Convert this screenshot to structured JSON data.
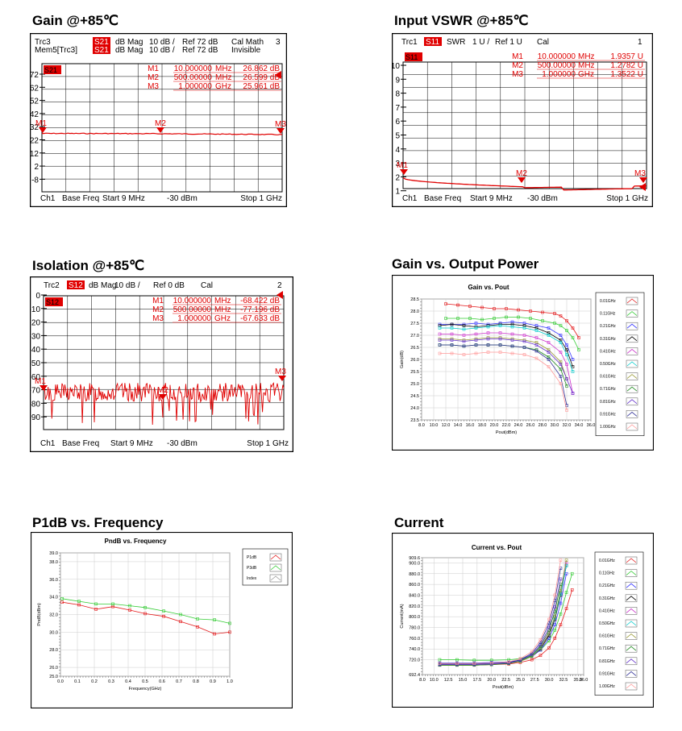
{
  "sections": {
    "gain_85": "Gain @+85℃",
    "vswr_85": "Input VSWR @+85℃",
    "isolation_85": "Isolation @+85℃",
    "gain_vs_pout": "Gain vs. Output Power",
    "p1db_vs_freq": "P1dB vs. Frequency",
    "current": "Current"
  },
  "vna_gain": {
    "header": [
      [
        "Trc3",
        "S21",
        "dB Mag",
        "10 dB /",
        "Ref 72 dB",
        "Cal Math",
        "3"
      ],
      [
        "Mem5[Trc3]",
        "S21",
        "dB Mag",
        "10 dB /",
        "Ref 72 dB",
        "Invisible",
        ""
      ]
    ],
    "trace_badge": "S21",
    "markers": [
      {
        "name": "M1",
        "freq": "10.000000",
        "unit": "MHz",
        "value": "26.862 dB"
      },
      {
        "name": "M2",
        "freq": "500.00000",
        "unit": "MHz",
        "value": "26.599 dB"
      },
      {
        "name": "M3",
        "freq": "1.000000",
        "unit": "GHz",
        "value": "25.961 dB"
      }
    ],
    "marker_tags": [
      "M1",
      "M2",
      "M3"
    ],
    "ticks": [
      "72",
      "62",
      "52",
      "42",
      "32",
      "22",
      "12",
      "2",
      "-8"
    ],
    "footer": {
      "ch": "Ch1",
      "base": "Base Freq",
      "start": "Start  9 MHz",
      "power": "-30 dBm",
      "stop": "Stop  1 GHz"
    },
    "chart_data": {
      "type": "line",
      "y_ref": 72,
      "scale_db_per_div": 10,
      "x_range_ghz": [
        0.009,
        1.0
      ],
      "x": [
        0.009,
        0.5,
        1.0
      ],
      "y": [
        26.862,
        26.599,
        25.961
      ]
    }
  },
  "vna_vswr": {
    "header": [
      [
        "Trc1",
        "S11",
        "SWR",
        "1 U /",
        "Ref 1 U",
        "Cal",
        "1"
      ]
    ],
    "trace_badge": "S11",
    "markers": [
      {
        "name": "M1",
        "freq": "10.000000",
        "unit": "MHz",
        "value": "1.9357 U"
      },
      {
        "name": "M2",
        "freq": "500.00000",
        "unit": "MHz",
        "value": "1.2782 U"
      },
      {
        "name": "M3",
        "freq": "1.000000",
        "unit": "GHz",
        "value": "1.3522 U"
      }
    ],
    "marker_tags": [
      "M1",
      "M2",
      "M3"
    ],
    "ticks": [
      "10",
      "9",
      "8",
      "7",
      "6",
      "5",
      "4",
      "3",
      "2",
      "1"
    ],
    "footer": {
      "ch": "Ch1",
      "base": "Base Freq",
      "start": "Start  9 MHz",
      "power": "-30 dBm",
      "stop": "Stop  1 GHz"
    },
    "chart_data": {
      "type": "line",
      "x_range_ghz": [
        0.009,
        1.0
      ],
      "ylim": [
        1,
        10
      ],
      "x": [
        0.009,
        0.5,
        1.0
      ],
      "y": [
        1.9357,
        1.2782,
        1.3522
      ]
    }
  },
  "vna_iso": {
    "header": [
      [
        "Trc2",
        "S12",
        "dB Mag",
        "10 dB /",
        "Ref 0 dB",
        "Cal",
        "2"
      ]
    ],
    "trace_badge": "S12",
    "markers": [
      {
        "name": "M1",
        "freq": "10.000000",
        "unit": "MHz",
        "value": "-68.422 dB"
      },
      {
        "name": "M2",
        "freq": "500.00000",
        "unit": "MHz",
        "value": "-77.196 dB"
      },
      {
        "name": "M3",
        "freq": "1.000000",
        "unit": "GHz",
        "value": "-67.633 dB"
      }
    ],
    "marker_tags": [
      "M1",
      "M2",
      "M3"
    ],
    "ticks": [
      "0",
      "-10",
      "-20",
      "-30",
      "-40",
      "-50",
      "-60",
      "-70",
      "-80",
      "-90"
    ],
    "footer": {
      "ch": "Ch1",
      "base": "Base Freq",
      "start": "Start  9 MHz",
      "power": "-30 dBm",
      "stop": "Stop  1 GHz"
    },
    "chart_data": {
      "type": "line",
      "y_ref": 0,
      "scale_db_per_div": 10,
      "x_range_ghz": [
        0.009,
        1.0
      ],
      "x": [
        0.009,
        0.5,
        1.0
      ],
      "y": [
        -68.422,
        -77.196,
        -67.633
      ]
    }
  },
  "chart_gain_pout": {
    "title": "Gain vs. Pout",
    "xlabel": "Pout(dBm)",
    "ylabel": "Gain(dB)",
    "yticks": [
      "28.5",
      "28.0",
      "27.5",
      "27.0",
      "26.5",
      "26.0",
      "25.5",
      "25.0",
      "24.5",
      "24.0",
      "23.5"
    ],
    "xticks": [
      "8.0",
      "10.0",
      "12.0",
      "14.0",
      "16.0",
      "18.0",
      "20.0",
      "22.0",
      "24.0",
      "26.0",
      "28.0",
      "30.0",
      "32.0",
      "34.0",
      "36.0"
    ],
    "legend": [
      "0.01GHz",
      "0.11GHz",
      "0.21GHz",
      "0.31GHz",
      "0.41GHz",
      "0.50GHz",
      "0.61GHz",
      "0.71GHz",
      "0.81GHz",
      "0.91GHz",
      "1.00GHz"
    ],
    "colors": [
      "#e41a1c",
      "#33cc33",
      "#3333ff",
      "#000000",
      "#cc33cc",
      "#00cccc",
      "#999933",
      "#228b22",
      "#6633cc",
      "#333399",
      "#ff9999"
    ],
    "chart_data": {
      "type": "line",
      "xlim": [
        8,
        36
      ],
      "ylim": [
        23.5,
        28.5
      ],
      "series": [
        {
          "name": "0.01GHz",
          "x": [
            12,
            14,
            16,
            18,
            20,
            22,
            24,
            26,
            28,
            30,
            31,
            32,
            33,
            34
          ],
          "y": [
            28.3,
            28.25,
            28.2,
            28.15,
            28.1,
            28.1,
            28.05,
            28.0,
            27.95,
            27.9,
            27.8,
            27.6,
            27.3,
            26.9
          ]
        },
        {
          "name": "0.11GHz",
          "x": [
            12,
            14,
            16,
            18,
            20,
            22,
            24,
            26,
            28,
            30,
            31,
            32,
            33,
            34
          ],
          "y": [
            27.7,
            27.7,
            27.7,
            27.65,
            27.7,
            27.75,
            27.75,
            27.7,
            27.6,
            27.5,
            27.4,
            27.2,
            26.9,
            26.4
          ]
        },
        {
          "name": "0.21GHz",
          "x": [
            11,
            13,
            15,
            17,
            19,
            21,
            23,
            25,
            27,
            29,
            31,
            32,
            33
          ],
          "y": [
            27.45,
            27.45,
            27.45,
            27.5,
            27.45,
            27.5,
            27.55,
            27.5,
            27.4,
            27.3,
            27.0,
            26.6,
            26.0
          ]
        },
        {
          "name": "0.31GHz",
          "x": [
            11,
            13,
            15,
            17,
            19,
            21,
            23,
            25,
            27,
            29,
            31,
            32,
            33
          ],
          "y": [
            27.4,
            27.45,
            27.4,
            27.35,
            27.4,
            27.45,
            27.45,
            27.4,
            27.3,
            27.1,
            26.8,
            26.4,
            25.7
          ]
        },
        {
          "name": "0.41GHz",
          "x": [
            11,
            13,
            15,
            17,
            19,
            21,
            23,
            25,
            27,
            29,
            31,
            32,
            33
          ],
          "y": [
            27.05,
            27.05,
            27.0,
            27.05,
            27.1,
            27.1,
            27.05,
            27.0,
            26.9,
            26.7,
            26.3,
            25.8,
            24.6
          ]
        },
        {
          "name": "0.50GHz",
          "x": [
            11,
            13,
            15,
            17,
            19,
            21,
            23,
            25,
            27,
            29,
            31,
            32,
            33
          ],
          "y": [
            27.3,
            27.3,
            27.25,
            27.3,
            27.35,
            27.4,
            27.35,
            27.3,
            27.2,
            27.0,
            26.7,
            26.2,
            25.5
          ]
        },
        {
          "name": "0.61GHz",
          "x": [
            11,
            13,
            15,
            17,
            19,
            21,
            23,
            25,
            27,
            29,
            31,
            32
          ],
          "y": [
            26.85,
            26.85,
            26.8,
            26.85,
            26.9,
            26.9,
            26.85,
            26.8,
            26.7,
            26.4,
            25.9,
            25.2
          ]
        },
        {
          "name": "0.71GHz",
          "x": [
            11,
            13,
            15,
            17,
            19,
            21,
            23,
            25,
            27,
            29,
            31,
            32
          ],
          "y": [
            26.6,
            26.6,
            26.55,
            26.6,
            26.6,
            26.6,
            26.55,
            26.5,
            26.4,
            26.1,
            25.6,
            24.9
          ]
        },
        {
          "name": "0.81GHz",
          "x": [
            11,
            13,
            15,
            17,
            19,
            21,
            23,
            25,
            27,
            29,
            31,
            32,
            33
          ],
          "y": [
            26.8,
            26.8,
            26.75,
            26.8,
            26.85,
            26.85,
            26.8,
            26.75,
            26.6,
            26.3,
            25.8,
            25.2,
            24.6
          ]
        },
        {
          "name": "0.91GHz",
          "x": [
            11,
            13,
            15,
            17,
            19,
            21,
            23,
            25,
            27,
            29,
            31,
            32
          ],
          "y": [
            26.6,
            26.6,
            26.55,
            26.6,
            26.6,
            26.6,
            26.55,
            26.5,
            26.35,
            26.0,
            25.3,
            24.1
          ]
        },
        {
          "name": "1.00GHz",
          "x": [
            11,
            13,
            15,
            17,
            19,
            21,
            23,
            25,
            27,
            29,
            31,
            32
          ],
          "y": [
            26.25,
            26.25,
            26.2,
            26.25,
            26.3,
            26.3,
            26.25,
            26.2,
            26.05,
            25.7,
            25.0,
            23.9
          ]
        }
      ]
    }
  },
  "chart_p1db": {
    "title": "PndB vs. Frequency",
    "xlabel": "Frequency(GHz)",
    "ylabel": "PndB(dBm)",
    "yticks": [
      "39.0",
      "38.0",
      "36.0",
      "34.0",
      "32.0",
      "30.0",
      "28.0",
      "26.0",
      "25.0"
    ],
    "xticks": [
      "0.0",
      "0.1",
      "0.2",
      "0.3",
      "0.4",
      "0.5",
      "0.6",
      "0.7",
      "0.8",
      "0.9",
      "1.0"
    ],
    "legend": [
      "P1dB",
      "P3dB",
      "Index"
    ],
    "colors": [
      "#e41a1c",
      "#33cc33",
      "#999999"
    ],
    "chart_data": {
      "type": "line",
      "xlim": [
        0,
        1
      ],
      "ylim": [
        25,
        39
      ],
      "x": [
        0.01,
        0.11,
        0.21,
        0.31,
        0.41,
        0.5,
        0.61,
        0.71,
        0.81,
        0.91,
        1.0
      ],
      "series": [
        {
          "name": "P1dB",
          "values": [
            33.4,
            33.1,
            32.6,
            32.9,
            32.5,
            32.1,
            31.8,
            31.2,
            30.6,
            29.8,
            30.0
          ]
        },
        {
          "name": "P3dB",
          "values": [
            33.8,
            33.5,
            33.2,
            33.2,
            33.0,
            32.8,
            32.4,
            32.0,
            31.5,
            31.4,
            31.0
          ]
        }
      ]
    }
  },
  "chart_current": {
    "title": "Current vs. Pout",
    "xlabel": "Pout(dBm)",
    "ylabel": "Current(mA)",
    "yticks": [
      "909.6",
      "900.0",
      "880.0",
      "860.0",
      "840.0",
      "820.0",
      "800.0",
      "780.0",
      "760.0",
      "740.0",
      "720.0",
      "692.4"
    ],
    "xticks": [
      "8.0",
      "10.0",
      "12.5",
      "15.0",
      "17.5",
      "20.0",
      "22.5",
      "25.0",
      "27.5",
      "30.0",
      "32.5",
      "35.0",
      "36.0"
    ],
    "legend": [
      "0.01GHz",
      "0.11GHz",
      "0.21GHz",
      "0.31GHz",
      "0.41GHz",
      "0.50GHz",
      "0.61GHz",
      "0.71GHz",
      "0.81GHz",
      "0.91GHz",
      "1.00GHz"
    ],
    "colors": [
      "#e41a1c",
      "#33cc33",
      "#3333ff",
      "#000000",
      "#cc33cc",
      "#00cccc",
      "#999933",
      "#228b22",
      "#6633cc",
      "#333399",
      "#ff9999"
    ],
    "chart_data": {
      "type": "line",
      "xlim": [
        8,
        36
      ],
      "ylim": [
        692.4,
        909.6
      ],
      "series": [
        {
          "name": "0.01GHz",
          "x": [
            11,
            14,
            17,
            20,
            23,
            25,
            27,
            28.5,
            30,
            31,
            32,
            33,
            34
          ],
          "y": [
            710,
            710,
            710,
            711,
            712,
            715,
            720,
            728,
            742,
            760,
            785,
            815,
            850
          ]
        },
        {
          "name": "0.11GHz",
          "x": [
            11,
            14,
            17,
            20,
            23,
            25,
            27,
            28.5,
            30,
            31,
            32,
            33,
            34
          ],
          "y": [
            720,
            720,
            719,
            719,
            720,
            722,
            728,
            738,
            755,
            775,
            805,
            845,
            880
          ]
        },
        {
          "name": "0.21GHz",
          "x": [
            11,
            14,
            17,
            20,
            23,
            25,
            27,
            28.5,
            30,
            31,
            32,
            33
          ],
          "y": [
            714,
            714,
            714,
            715,
            716,
            719,
            726,
            738,
            760,
            785,
            825,
            880
          ]
        },
        {
          "name": "0.31GHz",
          "x": [
            11,
            14,
            17,
            20,
            23,
            25,
            27,
            28.5,
            30,
            31,
            32,
            33
          ],
          "y": [
            712,
            712,
            712,
            713,
            714,
            718,
            726,
            740,
            765,
            795,
            840,
            895
          ]
        },
        {
          "name": "0.41GHz",
          "x": [
            11,
            14,
            17,
            20,
            23,
            25,
            27,
            28.5,
            30,
            31,
            32,
            33
          ],
          "y": [
            712,
            712,
            712,
            713,
            715,
            719,
            728,
            743,
            770,
            800,
            845,
            900
          ]
        },
        {
          "name": "0.50GHz",
          "x": [
            11,
            14,
            17,
            20,
            23,
            25,
            27,
            28.5,
            30,
            31,
            32,
            33
          ],
          "y": [
            711,
            711,
            711,
            712,
            714,
            718,
            727,
            742,
            768,
            798,
            842,
            895
          ]
        },
        {
          "name": "0.61GHz",
          "x": [
            11,
            14,
            17,
            20,
            23,
            25,
            27,
            28.5,
            30,
            31,
            32,
            33
          ],
          "y": [
            710,
            710,
            710,
            711,
            713,
            717,
            726,
            741,
            768,
            800,
            848,
            905
          ]
        },
        {
          "name": "0.71GHz",
          "x": [
            11,
            14,
            17,
            20,
            23,
            25,
            27,
            28.5,
            30,
            31,
            32
          ],
          "y": [
            710,
            710,
            710,
            711,
            713,
            718,
            728,
            745,
            775,
            810,
            860
          ]
        },
        {
          "name": "0.81GHz",
          "x": [
            11,
            14,
            17,
            20,
            23,
            25,
            27,
            28.5,
            30,
            31,
            32
          ],
          "y": [
            711,
            711,
            711,
            712,
            714,
            719,
            730,
            748,
            780,
            818,
            870
          ]
        },
        {
          "name": "0.91GHz",
          "x": [
            11,
            14,
            17,
            20,
            23,
            25,
            27,
            28.5,
            30,
            31,
            32
          ],
          "y": [
            712,
            712,
            712,
            713,
            715,
            720,
            732,
            752,
            788,
            830,
            890
          ]
        },
        {
          "name": "1.00GHz",
          "x": [
            11,
            14,
            17,
            20,
            23,
            25,
            27,
            28.5,
            30,
            31,
            32
          ],
          "y": [
            713,
            713,
            713,
            714,
            716,
            722,
            735,
            757,
            795,
            840,
            905
          ]
        }
      ]
    }
  }
}
